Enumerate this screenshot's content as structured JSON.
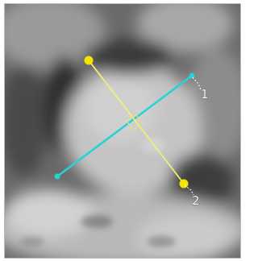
{
  "measurements": [
    {
      "label": "1"
    },
    {
      "label": "2"
    }
  ]
}
